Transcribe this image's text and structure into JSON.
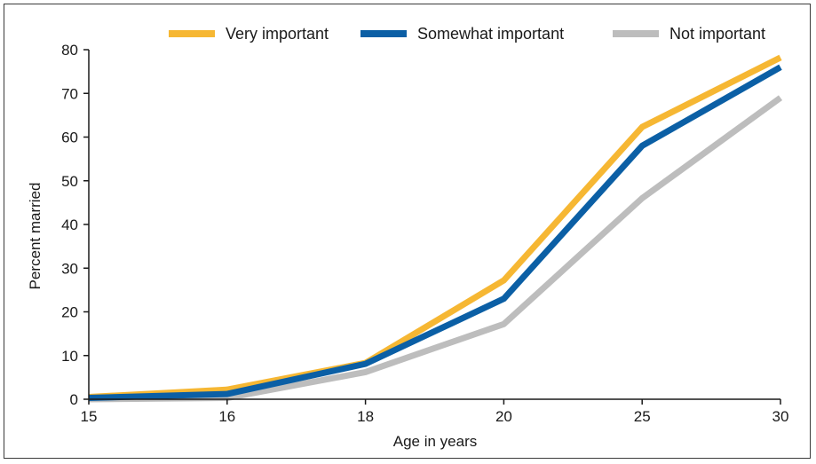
{
  "chart_data": {
    "type": "line",
    "title": "",
    "xlabel": "Age in years",
    "ylabel": "Percent married",
    "x": [
      15,
      16,
      18,
      20,
      25,
      30
    ],
    "x_tick_labels": [
      "15",
      "16",
      "18",
      "20",
      "25",
      "30"
    ],
    "y_ticks": [
      0,
      10,
      20,
      30,
      40,
      50,
      60,
      70,
      80
    ],
    "ylim": [
      0,
      80
    ],
    "grid": false,
    "legend_position": "top",
    "series": [
      {
        "name": "Very important",
        "color": "#F6B733",
        "values": [
          0.5,
          2.2,
          8.3,
          27.2,
          62.3,
          78.2
        ]
      },
      {
        "name": "Somewhat important",
        "color": "#0B5FA5",
        "values": [
          0.3,
          1.2,
          8.1,
          23.0,
          58.0,
          76.0
        ]
      },
      {
        "name": "Not important",
        "color": "#BDBDBD",
        "values": [
          0.0,
          0.3,
          6.2,
          17.2,
          46.0,
          69.0
        ]
      }
    ]
  }
}
